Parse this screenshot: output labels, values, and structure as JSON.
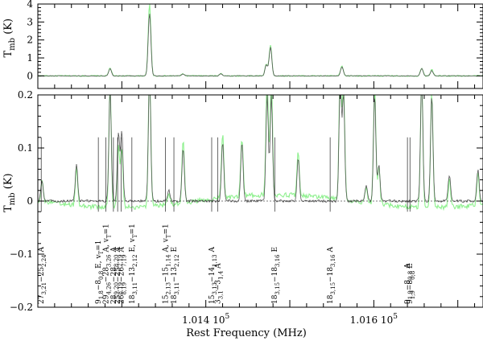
{
  "chart_data": [
    {
      "type": "line",
      "panel": "top",
      "ylabel": "T_mb (K)",
      "ylabel_main": "T",
      "ylabel_sub": "mb",
      "ylabel_unit": " (K)",
      "xlim": [
        101200,
        101730
      ],
      "ylim": [
        -0.7,
        4.0
      ],
      "yticks": [
        0,
        1,
        2,
        3,
        4
      ],
      "series": [
        {
          "color": "#8ef08e",
          "peaks": [
            [
              101286,
              0.45
            ],
            [
              101333,
              4.0
            ],
            [
              101373,
              0.12
            ],
            [
              101418,
              0.15
            ],
            [
              101472,
              0.65
            ],
            [
              101477,
              1.7
            ],
            [
              101562,
              0.55
            ],
            [
              101657,
              0.45
            ],
            [
              101669,
              0.35
            ]
          ]
        },
        {
          "color": "#555555",
          "peaks": [
            [
              101286,
              0.4
            ],
            [
              101333,
              3.5
            ],
            [
              101373,
              0.1
            ],
            [
              101418,
              0.12
            ],
            [
              101472,
              0.6
            ],
            [
              101477,
              1.6
            ],
            [
              101562,
              0.5
            ],
            [
              101657,
              0.4
            ],
            [
              101669,
              0.3
            ]
          ]
        }
      ]
    },
    {
      "type": "line",
      "panel": "bottom",
      "xlabel": "Rest Frequency (MHz)",
      "ylabel": "T_mb (K)",
      "ylabel_main": "T",
      "ylabel_sub": "mb",
      "ylabel_unit": " (K)",
      "xlim": [
        101200,
        101730
      ],
      "ylim": [
        -0.2,
        0.2
      ],
      "yticks": [
        -0.2,
        -0.1,
        0,
        0.1,
        0.2
      ],
      "ytick_labels": [
        "−0.2",
        "−0.1",
        "0",
        "0.1",
        "0.2"
      ],
      "xticks": [
        {
          "value": 101400,
          "label": "1.014 10",
          "exp": "5"
        },
        {
          "value": 101600,
          "label": "1.016 10",
          "exp": "5"
        }
      ],
      "series": [
        {
          "color": "#8ef08e",
          "peaks": [
            [
              101205,
              0.04
            ],
            [
              101246,
              0.07
            ],
            [
              101286,
              0.23
            ],
            [
              101296,
              0.12
            ],
            [
              101300,
              0.11
            ],
            [
              101333,
              0.26
            ],
            [
              101356,
              0.02
            ],
            [
              101373,
              0.12
            ],
            [
              101420,
              0.12
            ],
            [
              101443,
              0.11
            ],
            [
              101473,
              0.22
            ],
            [
              101478,
              0.22
            ],
            [
              101510,
              0.08
            ],
            [
              101560,
              0.25
            ],
            [
              101564,
              0.22
            ],
            [
              101591,
              0.03
            ],
            [
              101601,
              0.22
            ],
            [
              101606,
              0.07
            ],
            [
              101657,
              0.25
            ],
            [
              101669,
              0.22
            ],
            [
              101690,
              0.05
            ],
            [
              101724,
              0.06
            ]
          ]
        },
        {
          "color": "#555555",
          "peaks": [
            [
              101205,
              0.04
            ],
            [
              101246,
              0.07
            ],
            [
              101286,
              0.21
            ],
            [
              101296,
              0.13
            ],
            [
              101300,
              0.13
            ],
            [
              101333,
              0.24
            ],
            [
              101356,
              0.02
            ],
            [
              101373,
              0.1
            ],
            [
              101420,
              0.11
            ],
            [
              101443,
              0.11
            ],
            [
              101473,
              0.2
            ],
            [
              101478,
              0.2
            ],
            [
              101510,
              0.08
            ],
            [
              101560,
              0.23
            ],
            [
              101564,
              0.2
            ],
            [
              101591,
              0.03
            ],
            [
              101601,
              0.2
            ],
            [
              101606,
              0.07
            ],
            [
              101657,
              0.23
            ],
            [
              101669,
              0.2
            ],
            [
              101690,
              0.05
            ],
            [
              101724,
              0.06
            ]
          ]
        }
      ],
      "line_ids": [
        {
          "x": 101204,
          "parts": [
            [
              "27",
              ""
            ],
            [
              "3,21",
              "sub"
            ],
            [
              "−25",
              ""
            ],
            [
              "2,24",
              "sub"
            ],
            [
              " A",
              ""
            ]
          ]
        },
        {
          "x": 101272,
          "parts": [
            [
              "9",
              ""
            ],
            [
              "1,8",
              "sub"
            ],
            [
              "−8",
              ""
            ],
            [
              "0,8",
              "sub"
            ],
            [
              " E, v",
              ""
            ],
            [
              "T",
              "sub"
            ],
            [
              "=1",
              ""
            ]
          ]
        },
        {
          "x": 101281,
          "parts": [
            [
              "29",
              ""
            ],
            [
              "4,26",
              "sub"
            ],
            [
              "−28",
              ""
            ],
            [
              "3,26",
              "sub"
            ],
            [
              " A, v",
              ""
            ],
            [
              "T",
              "sub"
            ],
            [
              "=1",
              ""
            ]
          ]
        },
        {
          "x": 101290,
          "parts": [
            [
              "28",
              ""
            ],
            [
              "9,20",
              "sub"
            ],
            [
              "−28",
              ""
            ],
            [
              "8,20",
              "sub"
            ],
            [
              " A",
              ""
            ]
          ]
        },
        {
          "x": 101295,
          "parts": [
            [
              "25",
              ""
            ],
            [
              "8,19",
              "sub"
            ],
            [
              "−25",
              ""
            ],
            [
              "7,19",
              "sub"
            ],
            [
              " A",
              ""
            ]
          ]
        },
        {
          "x": 101299,
          "parts": [
            [
              "26",
              ""
            ],
            [
              "8,19",
              "sub"
            ],
            [
              "−26",
              ""
            ],
            [
              "7,19",
              "sub"
            ],
            [
              " A",
              ""
            ]
          ]
        },
        {
          "x": 101312,
          "parts": [
            [
              "18",
              ""
            ],
            [
              "3,11",
              "sub"
            ],
            [
              "−13",
              ""
            ],
            [
              "2,12",
              "sub"
            ],
            [
              " E, v",
              ""
            ],
            [
              "T",
              "sub"
            ],
            [
              "=1",
              ""
            ]
          ]
        },
        {
          "x": 101352,
          "parts": [
            [
              "15",
              ""
            ],
            [
              "2,13",
              "sub"
            ],
            [
              "−15",
              ""
            ],
            [
              "1,14",
              "sub"
            ],
            [
              " A, v",
              ""
            ],
            [
              "T",
              "sub"
            ],
            [
              "=1",
              ""
            ]
          ]
        },
        {
          "x": 101362,
          "parts": [
            [
              "18",
              ""
            ],
            [
              "3,11",
              "sub"
            ],
            [
              "−13",
              ""
            ],
            [
              "2,12",
              "sub"
            ],
            [
              " E",
              ""
            ]
          ]
        },
        {
          "x": 101407,
          "parts": [
            [
              "15",
              ""
            ],
            [
              "3,13",
              "sub"
            ],
            [
              "−14",
              ""
            ],
            [
              "1,13",
              "sub"
            ],
            [
              " A",
              ""
            ]
          ]
        },
        {
          "x": 101414,
          "parts": [
            [
              "3",
              ""
            ],
            [
              "3,1",
              "sub"
            ],
            [
              "−3",
              ""
            ],
            [
              "1,4",
              "sub"
            ],
            [
              " A",
              ""
            ]
          ]
        },
        {
          "x": 101482,
          "parts": [
            [
              "18",
              ""
            ],
            [
              "3,15",
              "sub"
            ],
            [
              "−18",
              ""
            ],
            [
              "3,16",
              "sub"
            ],
            [
              " E",
              ""
            ]
          ]
        },
        {
          "x": 101548,
          "parts": [
            [
              "18",
              ""
            ],
            [
              "3,15",
              "sub"
            ],
            [
              "−18",
              ""
            ],
            [
              "3,16",
              "sub"
            ],
            [
              " A",
              ""
            ]
          ]
        },
        {
          "x": 101640,
          "parts": [
            [
              "9",
              ""
            ],
            [
              "1,9",
              "sub"
            ],
            [
              "−8",
              ""
            ],
            [
              "0,8",
              "sub"
            ],
            [
              " A",
              ""
            ]
          ]
        },
        {
          "x": 101643,
          "parts": [
            [
              "9",
              ""
            ],
            [
              "1,9",
              "sub"
            ],
            [
              "−8",
              ""
            ],
            [
              "0,8",
              "sub"
            ],
            [
              " E",
              ""
            ]
          ]
        }
      ]
    }
  ]
}
